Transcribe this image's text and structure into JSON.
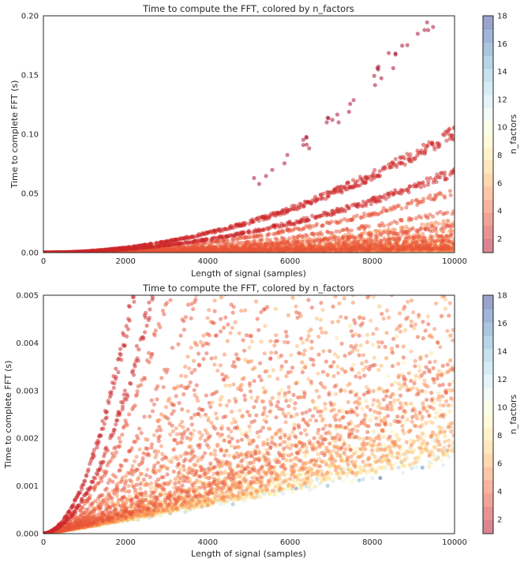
{
  "chart_data": [
    {
      "type": "scatter",
      "title": "Time to compute the FFT, colored by n_factors",
      "xlabel": "Length of signal (samples)",
      "ylabel": "Time to complete FFT (s)",
      "xlim": [
        0,
        10000
      ],
      "ylim": [
        0,
        0.2
      ],
      "xticks": [
        "0",
        "2000",
        "4000",
        "6000",
        "8000",
        "10000"
      ],
      "yticks": [
        "0.00",
        "0.05",
        "0.10",
        "0.15",
        "0.20"
      ],
      "grid": false,
      "colorbar": {
        "label": "n_factors",
        "range": [
          1,
          18
        ],
        "ticks": [
          "2",
          "4",
          "6",
          "8",
          "10",
          "12",
          "14",
          "16",
          "18"
        ],
        "colormap": "RdYlBu"
      },
      "series": [
        {
          "n_factors": 1,
          "approx_time_at_10000": 0.2
        },
        {
          "n_factors": 2,
          "approx_time_at_10000": 0.08
        },
        {
          "n_factors": 2,
          "approx_time_at_10000": 0.052
        },
        {
          "n_factors": 3,
          "approx_time_at_10000": 0.039
        },
        {
          "n_factors": 3,
          "approx_time_at_10000": 0.03
        },
        {
          "n_factors": 4,
          "approx_time_at_10000": 0.022
        }
      ]
    },
    {
      "type": "scatter",
      "title": "Time to compute the FFT, colored by n_factors",
      "xlabel": "Length of signal (samples)",
      "ylabel": "Time to complete FFT (s)",
      "xlim": [
        0,
        10000
      ],
      "ylim": [
        0,
        0.005
      ],
      "xticks": [
        "0",
        "2000",
        "4000",
        "6000",
        "8000",
        "10000"
      ],
      "yticks": [
        "0.000",
        "0.001",
        "0.002",
        "0.003",
        "0.004",
        "0.005"
      ],
      "grid": false,
      "colorbar": {
        "label": "n_factors",
        "range": [
          1,
          18
        ],
        "ticks": [
          "2",
          "4",
          "6",
          "8",
          "10",
          "12",
          "14",
          "16",
          "18"
        ],
        "colormap": "RdYlBu"
      },
      "series": [
        {
          "n_factors": 1,
          "approx_x_at_0.005": 1600
        },
        {
          "n_factors": 2,
          "approx_x_at_0.005": 2600
        },
        {
          "n_factors": 3,
          "approx_x_at_0.005": 3600
        },
        {
          "n_factors": 4,
          "approx_time_at_10000": 0.0045
        },
        {
          "n_factors": 8,
          "approx_time_at_10000": 0.002
        },
        {
          "n_factors": 14,
          "approx_time_at_10000": 0.0009
        }
      ]
    }
  ],
  "colors": {
    "axes_edge": "#262626",
    "background": "#ffffff",
    "colormap_stops": [
      "#a50026",
      "#d73027",
      "#f46d43",
      "#fdae61",
      "#fee090",
      "#ffffbf",
      "#e0f3f8",
      "#abd9e9",
      "#74add1",
      "#4575b4",
      "#313695"
    ]
  }
}
